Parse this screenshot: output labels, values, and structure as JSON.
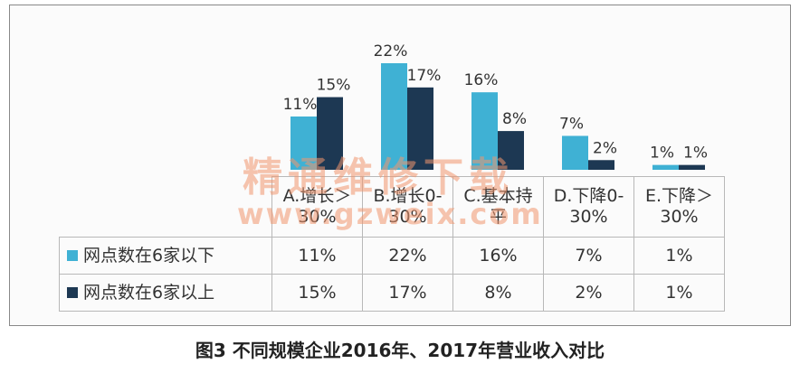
{
  "chart_data": {
    "type": "bar",
    "title": "图3 不同规模企业2016年、2017年营业收入对比",
    "categories": [
      "A.增长＞30%",
      "B.增长0-30%",
      "C.基本持平",
      "D.下降0-30%",
      "E.下降＞30%"
    ],
    "series": [
      {
        "name": "网点数在6家以下",
        "color": "#3fb1d4",
        "values": [
          11,
          22,
          16,
          7,
          1
        ],
        "value_labels": [
          "11%",
          "22%",
          "16%",
          "7%",
          "1%"
        ]
      },
      {
        "name": "网点数在6家以上",
        "color": "#1d3853",
        "values": [
          15,
          17,
          8,
          2,
          1
        ],
        "value_labels": [
          "15%",
          "17%",
          "8%",
          "2%",
          "1%"
        ]
      }
    ],
    "watermark": [
      "精通维修下载",
      "www.gzweix.com"
    ]
  }
}
